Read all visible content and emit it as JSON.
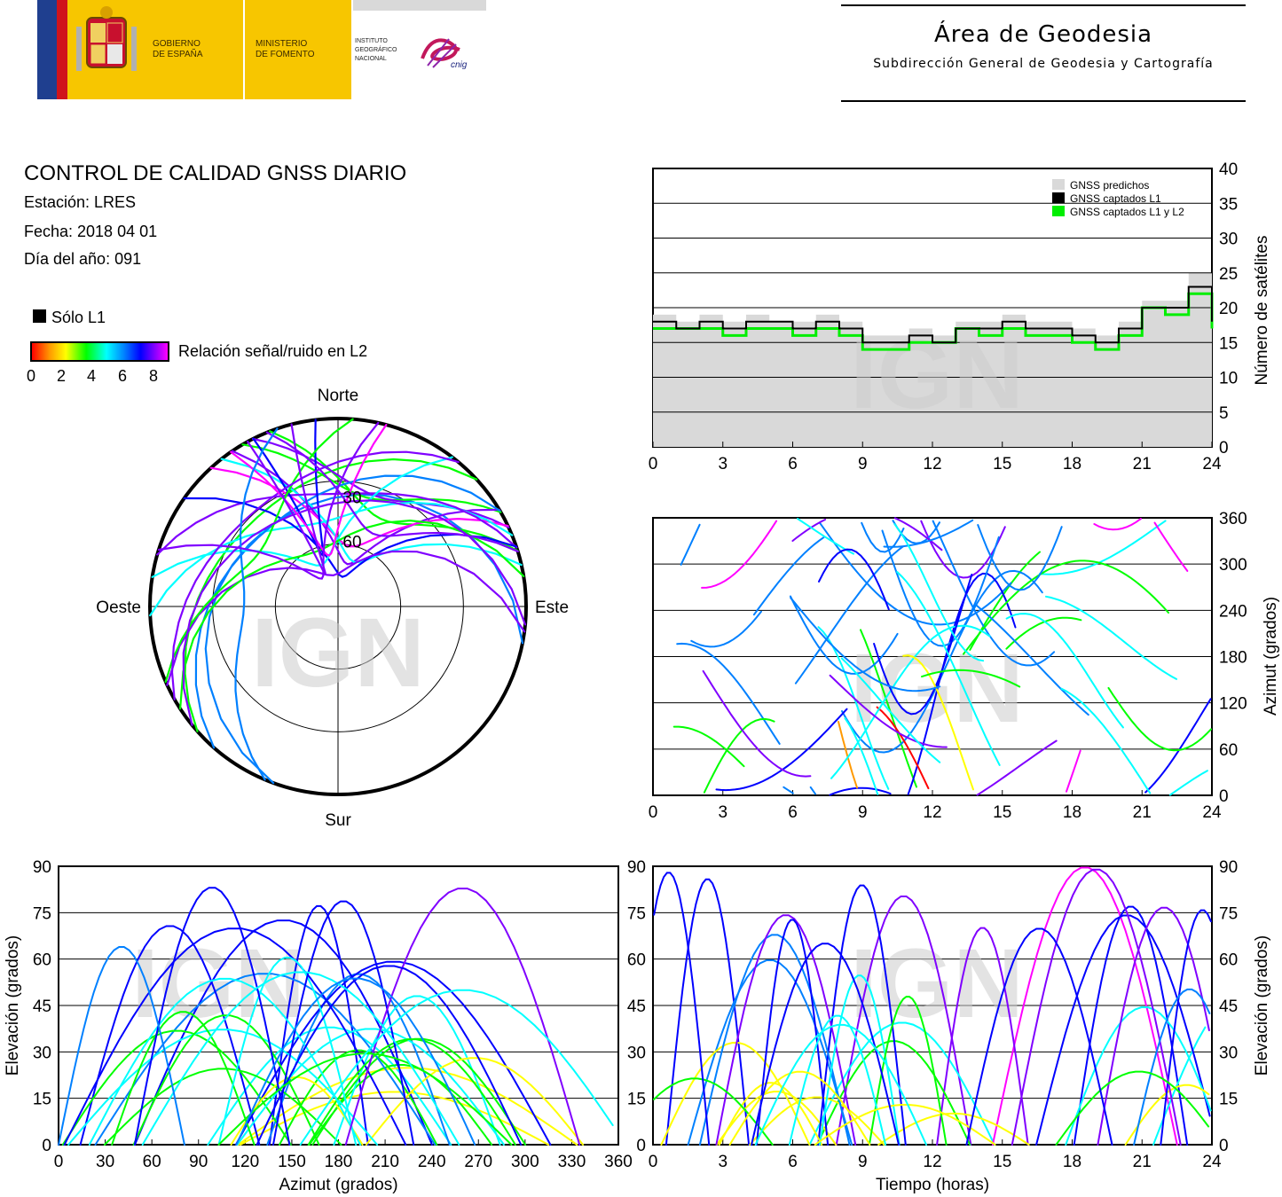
{
  "header": {
    "gov_line1": "GOBIERNO",
    "gov_line2": "DE ESPAÑA",
    "min_line1": "MINISTERIO",
    "min_line2": "DE FOMENTO",
    "ign_line1": "INSTITUTO",
    "ign_line2": "GEOGRÁFICO",
    "ign_line3": "NACIONAL",
    "ign_logo_text": "cnig",
    "area_title": "Área de Geodesia",
    "area_subtitle": "Subdirección General de Geodesia y Cartografía"
  },
  "report": {
    "title": "CONTROL DE CALIDAD GNSS DIARIO",
    "station": "Estación: LRES",
    "date": "Fecha: 2018 04 01",
    "doy": "Día del año: 091",
    "legend_l1": "Sólo L1",
    "snr_label": "Relación señal/ruido en L2",
    "snr_ticks": [
      "0",
      "2",
      "4",
      "6",
      "8"
    ]
  },
  "watermark": "IGN",
  "colors": {
    "predicted": "#d9d9d9",
    "l1": "#000000",
    "l1l2": "#00ee00",
    "snr_scale": [
      "#ff0000",
      "#ff9900",
      "#ffff00",
      "#00ff00",
      "#00ffff",
      "#0080ff",
      "#0000ff",
      "#8000ff",
      "#ff00ff"
    ]
  },
  "chart_data": [
    {
      "id": "satellite-count",
      "type": "line",
      "xlabel": "",
      "ylabel": "Número de satélites",
      "xlim": [
        0,
        24
      ],
      "ylim": [
        0,
        40
      ],
      "xticks": [
        0,
        3,
        6,
        9,
        12,
        15,
        18,
        21,
        24
      ],
      "yticks": [
        0,
        5,
        10,
        15,
        20,
        25,
        30,
        35,
        40
      ],
      "legend": [
        "GNSS predichos",
        "GNSS captados L1",
        "GNSS captados L1 y L2"
      ],
      "legend_position": "top-right",
      "grid": true,
      "x": [
        0,
        1,
        2,
        3,
        4,
        5,
        6,
        7,
        8,
        9,
        10,
        11,
        12,
        13,
        14,
        15,
        16,
        17,
        18,
        19,
        20,
        21,
        22,
        23,
        24
      ],
      "series": [
        {
          "name": "GNSS predichos",
          "values": [
            19,
            18,
            19,
            18,
            19,
            18,
            18,
            19,
            18,
            16,
            16,
            17,
            16,
            18,
            18,
            19,
            18,
            18,
            17,
            16,
            18,
            21,
            21,
            25,
            18
          ]
        },
        {
          "name": "GNSS captados L1",
          "values": [
            18,
            17,
            18,
            17,
            18,
            18,
            17,
            18,
            17,
            15,
            15,
            16,
            15,
            17,
            17,
            18,
            17,
            17,
            16,
            15,
            17,
            20,
            20,
            23,
            18
          ]
        },
        {
          "name": "GNSS captados L1 y L2",
          "values": [
            17,
            17,
            17,
            16,
            17,
            17,
            16,
            17,
            16,
            14,
            14,
            15,
            15,
            17,
            16,
            17,
            16,
            16,
            15,
            14,
            16,
            20,
            19,
            22,
            17
          ]
        }
      ]
    },
    {
      "id": "skyplot",
      "type": "scatter",
      "labels": {
        "north": "Norte",
        "south": "Sur",
        "east": "Este",
        "west": "Oeste"
      },
      "elevation_rings": [
        "30",
        "60"
      ],
      "note_series": "satellite tracks colored by L2 SNR (0-8)",
      "tracks": 24
    },
    {
      "id": "azimuth-time",
      "type": "scatter",
      "xlabel": "",
      "ylabel": "Azimut (grados)",
      "xlim": [
        0,
        24
      ],
      "ylim": [
        0,
        360
      ],
      "xticks": [
        0,
        3,
        6,
        9,
        12,
        15,
        18,
        21,
        24
      ],
      "yticks": [
        0,
        60,
        120,
        180,
        240,
        300,
        360
      ],
      "grid": true
    },
    {
      "id": "elevation-azimuth",
      "type": "scatter",
      "xlabel": "Azimut (grados)",
      "ylabel": "Elevación (grados)",
      "xlim": [
        0,
        360
      ],
      "ylim": [
        0,
        90
      ],
      "xticks": [
        0,
        30,
        60,
        90,
        120,
        150,
        180,
        210,
        240,
        270,
        300,
        330,
        360
      ],
      "yticks": [
        0,
        15,
        30,
        45,
        60,
        75,
        90
      ],
      "grid": true
    },
    {
      "id": "elevation-time",
      "type": "scatter",
      "xlabel": "Tiempo (horas)",
      "ylabel": "Elevación (grados)",
      "xlim": [
        0,
        24
      ],
      "ylim": [
        0,
        90
      ],
      "xticks": [
        0,
        3,
        6,
        9,
        12,
        15,
        18,
        21,
        24
      ],
      "yticks": [
        0,
        15,
        30,
        45,
        60,
        75,
        90
      ],
      "grid": true
    }
  ]
}
